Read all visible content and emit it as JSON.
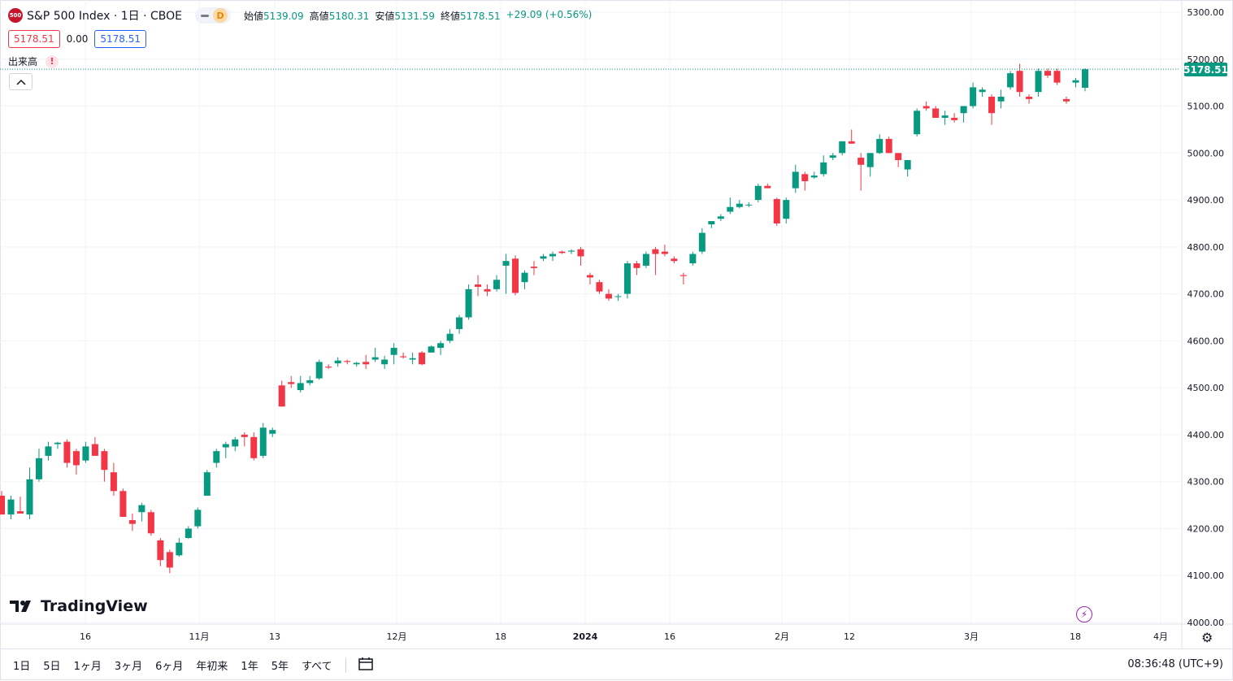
{
  "header": {
    "symbol_badge": "500",
    "title": "S&P 500 Index · 1日 · CBOE",
    "pill_letter": "D",
    "open_label": "始値",
    "open": "5139.09",
    "high_label": "高値",
    "high": "5180.31",
    "low_label": "安値",
    "low": "5131.59",
    "close_label": "終値",
    "close": "5178.51",
    "change": "+29.09 (+0.56%)"
  },
  "price_boxes": {
    "bid": "5178.51",
    "spread": "0.00",
    "ask": "5178.51"
  },
  "volume_label": "出来高",
  "warning_glyph": "!",
  "logo_text": "TradingView",
  "range_buttons": [
    "1日",
    "5日",
    "1ヶ月",
    "3ヶ月",
    "6ヶ月",
    "年初来",
    "1年",
    "5年",
    "すべて"
  ],
  "clock": "08:36:48 (UTC+9)",
  "last_price_label": "5178.51",
  "colors": {
    "up": "#089981",
    "down": "#f23645",
    "grid": "#f0f3fa",
    "text": "#131722"
  },
  "icons": [
    "chevron-up-icon",
    "calendar-range-icon",
    "lightning-icon",
    "settings-icon",
    "warning-icon"
  ],
  "chart_data": {
    "type": "candlestick",
    "y_range": [
      4000,
      5300
    ],
    "y_ticks": [
      "5300.00",
      "5200.00",
      "5100.00",
      "5000.00",
      "4900.00",
      "4800.00",
      "4700.00",
      "4600.00",
      "4500.00",
      "4400.00",
      "4300.00",
      "4200.00",
      "4100.00",
      "4000.00"
    ],
    "x_tick_labels": [
      "16",
      "11月",
      "13",
      "12月",
      "18",
      "2024",
      "16",
      "2月",
      "12",
      "3月",
      "18",
      "4月"
    ],
    "last_price": 5178.51,
    "candles": [
      [
        4270,
        4280,
        4230,
        4230
      ],
      [
        4230,
        4270,
        4220,
        4262
      ],
      [
        4237,
        4268,
        4235,
        4232
      ],
      [
        4230,
        4330,
        4220,
        4305
      ],
      [
        4305,
        4370,
        4300,
        4350
      ],
      [
        4355,
        4385,
        4345,
        4375
      ],
      [
        4380,
        4385,
        4370,
        4383
      ],
      [
        4385,
        4390,
        4330,
        4340
      ],
      [
        4365,
        4370,
        4315,
        4335
      ],
      [
        4345,
        4385,
        4340,
        4375
      ],
      [
        4380,
        4395,
        4360,
        4355
      ],
      [
        4365,
        4370,
        4300,
        4325
      ],
      [
        4320,
        4340,
        4270,
        4280
      ],
      [
        4280,
        4285,
        4225,
        4225
      ],
      [
        4218,
        4232,
        4195,
        4210
      ],
      [
        4235,
        4255,
        4215,
        4250
      ],
      [
        4235,
        4240,
        4185,
        4190
      ],
      [
        4175,
        4180,
        4120,
        4133
      ],
      [
        4150,
        4155,
        4105,
        4117
      ],
      [
        4143,
        4180,
        4140,
        4170
      ],
      [
        4180,
        4205,
        4178,
        4200
      ],
      [
        4205,
        4245,
        4200,
        4240
      ],
      [
        4270,
        4325,
        4270,
        4320
      ],
      [
        4340,
        4370,
        4330,
        4365
      ],
      [
        4373,
        4385,
        4350,
        4380
      ],
      [
        4375,
        4395,
        4365,
        4390
      ],
      [
        4400,
        4405,
        4375,
        4395
      ],
      [
        4395,
        4405,
        4345,
        4350
      ],
      [
        4355,
        4425,
        4350,
        4415
      ],
      [
        4402,
        4415,
        4395,
        4410
      ],
      [
        4505,
        4515,
        4460,
        4460
      ],
      [
        4512,
        4525,
        4500,
        4508
      ],
      [
        4495,
        4525,
        4490,
        4510
      ],
      [
        4510,
        4525,
        4505,
        4516
      ],
      [
        4520,
        4560,
        4517,
        4555
      ],
      [
        4545,
        4550,
        4540,
        4543
      ],
      [
        4552,
        4565,
        4545,
        4558
      ],
      [
        4557,
        4560,
        4550,
        4555
      ],
      [
        4550,
        4555,
        4545,
        4553
      ],
      [
        4555,
        4570,
        4540,
        4550
      ],
      [
        4560,
        4585,
        4555,
        4565
      ],
      [
        4550,
        4568,
        4540,
        4560
      ],
      [
        4570,
        4595,
        4550,
        4585
      ],
      [
        4567,
        4575,
        4562,
        4565
      ],
      [
        4560,
        4575,
        4550,
        4563
      ],
      [
        4575,
        4578,
        4548,
        4550
      ],
      [
        4575,
        4590,
        4575,
        4588
      ],
      [
        4585,
        4600,
        4570,
        4595
      ],
      [
        4600,
        4625,
        4595,
        4615
      ],
      [
        4625,
        4655,
        4615,
        4650
      ],
      [
        4650,
        4720,
        4645,
        4710
      ],
      [
        4720,
        4740,
        4695,
        4715
      ],
      [
        4710,
        4720,
        4695,
        4705
      ],
      [
        4710,
        4740,
        4705,
        4730
      ],
      [
        4760,
        4785,
        4700,
        4770
      ],
      [
        4775,
        4782,
        4697,
        4702
      ],
      [
        4725,
        4750,
        4710,
        4745
      ],
      [
        4758,
        4770,
        4740,
        4755
      ],
      [
        4775,
        4785,
        4770,
        4780
      ],
      [
        4780,
        4790,
        4770,
        4785
      ],
      [
        4790,
        4792,
        4785,
        4787
      ],
      [
        4790,
        4795,
        4785,
        4792
      ],
      [
        4795,
        4800,
        4760,
        4780
      ],
      [
        4740,
        4745,
        4720,
        4735
      ],
      [
        4725,
        4730,
        4700,
        4705
      ],
      [
        4700,
        4710,
        4685,
        4690
      ],
      [
        4695,
        4700,
        4685,
        4695
      ],
      [
        4700,
        4770,
        4690,
        4765
      ],
      [
        4765,
        4770,
        4740,
        4755
      ],
      [
        4760,
        4790,
        4755,
        4785
      ],
      [
        4795,
        4800,
        4740,
        4785
      ],
      [
        4790,
        4805,
        4780,
        4785
      ],
      [
        4775,
        4780,
        4765,
        4770
      ],
      [
        4740,
        4745,
        4720,
        4738
      ],
      [
        4765,
        4790,
        4760,
        4785
      ],
      [
        4790,
        4840,
        4785,
        4830
      ],
      [
        4848,
        4855,
        4840,
        4855
      ],
      [
        4860,
        4870,
        4855,
        4865
      ],
      [
        4875,
        4905,
        4870,
        4885
      ],
      [
        4885,
        4900,
        4882,
        4892
      ],
      [
        4890,
        4895,
        4885,
        4890
      ],
      [
        4900,
        4935,
        4895,
        4930
      ],
      [
        4930,
        4935,
        4925,
        4925
      ],
      [
        4902,
        4905,
        4845,
        4850
      ],
      [
        4860,
        4905,
        4850,
        4900
      ],
      [
        4925,
        4975,
        4915,
        4960
      ],
      [
        4955,
        4960,
        4920,
        4940
      ],
      [
        4948,
        4960,
        4945,
        4952
      ],
      [
        4955,
        4995,
        4950,
        4980
      ],
      [
        4990,
        5000,
        4985,
        4995
      ],
      [
        5000,
        5025,
        4995,
        5025
      ],
      [
        5025,
        5050,
        5020,
        5020
      ],
      [
        4990,
        5000,
        4920,
        4975
      ],
      [
        4970,
        5000,
        4950,
        5000
      ],
      [
        5000,
        5040,
        4998,
        5030
      ],
      [
        5030,
        5035,
        5000,
        5000
      ],
      [
        5000,
        5000,
        4970,
        4985
      ],
      [
        4965,
        4985,
        4950,
        4985
      ],
      [
        5040,
        5095,
        5035,
        5090
      ],
      [
        5100,
        5110,
        5090,
        5095
      ],
      [
        5095,
        5100,
        5075,
        5075
      ],
      [
        5075,
        5090,
        5060,
        5080
      ],
      [
        5075,
        5085,
        5065,
        5070
      ],
      [
        5085,
        5100,
        5065,
        5100
      ],
      [
        5100,
        5150,
        5095,
        5140
      ],
      [
        5130,
        5140,
        5120,
        5135
      ],
      [
        5120,
        5125,
        5060,
        5085
      ],
      [
        5110,
        5135,
        5095,
        5120
      ],
      [
        5140,
        5175,
        5135,
        5170
      ],
      [
        5175,
        5190,
        5120,
        5130
      ],
      [
        5120,
        5125,
        5105,
        5115
      ],
      [
        5130,
        5180,
        5120,
        5175
      ],
      [
        5175,
        5180,
        5160,
        5165
      ],
      [
        5175,
        5180,
        5145,
        5150
      ],
      [
        5115,
        5120,
        5105,
        5110
      ],
      [
        5150,
        5160,
        5140,
        5155
      ],
      [
        5139.09,
        5180.31,
        5131.59,
        5178.51
      ]
    ]
  }
}
